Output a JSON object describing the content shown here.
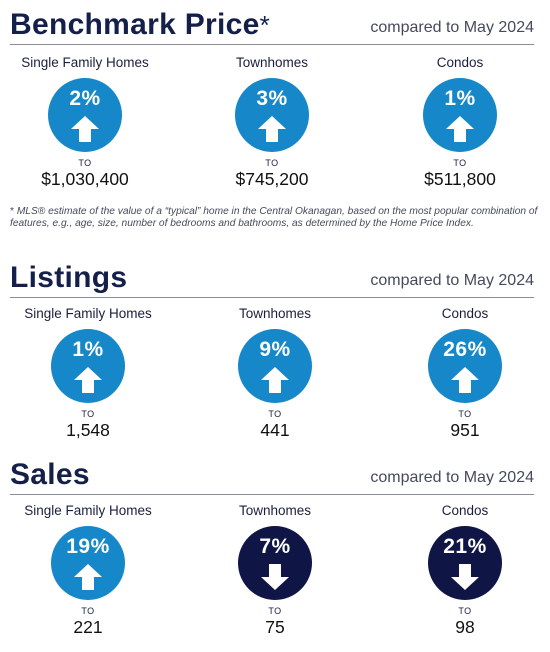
{
  "benchmark": {
    "title": "Benchmark Price",
    "title_mark": "*",
    "compared": "compared to May 2024",
    "items": [
      {
        "label": "Single Family Homes",
        "pct": "2%",
        "direction": "up",
        "to": "TO",
        "value": "$1,030,400"
      },
      {
        "label": "Townhomes",
        "pct": "3%",
        "direction": "up",
        "to": "TO",
        "value": "$745,200"
      },
      {
        "label": "Condos",
        "pct": "1%",
        "direction": "up",
        "to": "TO",
        "value": "$511,800"
      }
    ],
    "footnote_mark": "*",
    "footnote": "MLS® estimate of the value of a “typical” home in the Central Okanagan, based on the most popular combination of features, e.g., age, size, number of bedrooms and bathrooms, as determined by the Home Price Index."
  },
  "listings": {
    "title": "Listings",
    "compared": "compared to May  2024",
    "items": [
      {
        "label": "Single Family Homes",
        "pct": "1%",
        "direction": "up",
        "to": "TO",
        "value": "1,548"
      },
      {
        "label": "Townhomes",
        "pct": "9%",
        "direction": "up",
        "to": "TO",
        "value": "441"
      },
      {
        "label": "Condos",
        "pct": "26%",
        "direction": "up",
        "to": "TO",
        "value": "951"
      }
    ]
  },
  "sales": {
    "title": "Sales",
    "compared": "compared to May 2024",
    "items": [
      {
        "label": "Single Family Homes",
        "pct": "19%",
        "direction": "up",
        "to": "TO",
        "value": "221"
      },
      {
        "label": "Townhomes",
        "pct": "7%",
        "direction": "down",
        "to": "TO",
        "value": "75"
      },
      {
        "label": "Condos",
        "pct": "21%",
        "direction": "down",
        "to": "TO",
        "value": "98"
      }
    ]
  },
  "colors": {
    "up": "#1688c9",
    "down": "#0f1545",
    "heading": "#15204a"
  },
  "icons": {
    "up": "arrow-up-icon",
    "down": "arrow-down-icon"
  }
}
